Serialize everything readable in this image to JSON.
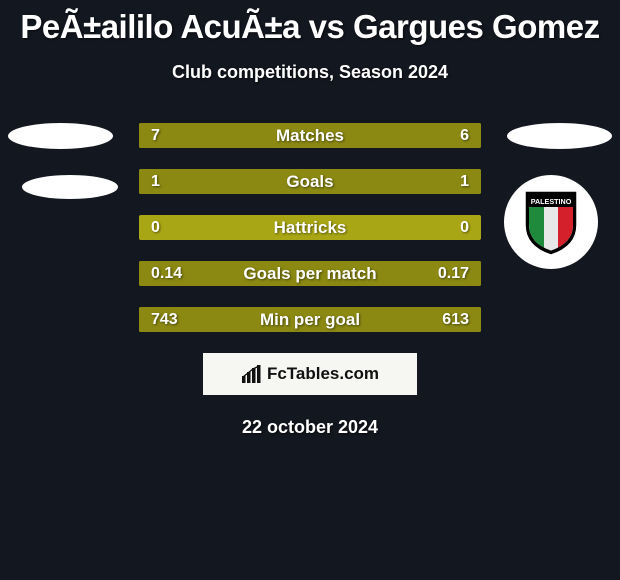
{
  "title": "PeÃ±aililo AcuÃ±a vs Gargues Gomez",
  "subtitle": "Club competitions, Season 2024",
  "date": "22 october 2024",
  "brand": "FcTables.com",
  "colors": {
    "bg": "#13171f",
    "bar": "#a9a615",
    "bar_fill": "#8b8912",
    "text": "#ffffff",
    "brand_bg": "#f6f6f3",
    "brand_text": "#111111"
  },
  "rows": [
    {
      "label": "Matches",
      "left": "7",
      "right": "6",
      "left_pct": 53.8,
      "right_pct": 46.2
    },
    {
      "label": "Goals",
      "left": "1",
      "right": "1",
      "left_pct": 50.0,
      "right_pct": 50.0
    },
    {
      "label": "Hattricks",
      "left": "0",
      "right": "0",
      "left_pct": 0.0,
      "right_pct": 0.0
    },
    {
      "label": "Goals per match",
      "left": "0.14",
      "right": "0.17",
      "left_pct": 45.2,
      "right_pct": 54.8
    },
    {
      "label": "Min per goal",
      "left": "743",
      "right": "613",
      "left_pct": 54.8,
      "right_pct": 45.2
    }
  ],
  "badge": {
    "name": "PALESTINO",
    "stripe_colors": [
      "#1f8a3b",
      "#e8e8e8",
      "#d4202a"
    ],
    "outline": "#000000",
    "band_bg": "#000000",
    "band_text": "#ffffff"
  }
}
